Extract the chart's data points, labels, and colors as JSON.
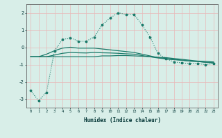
{
  "xlabel": "Humidex (Indice chaleur)",
  "x_ticks": [
    0,
    1,
    2,
    3,
    4,
    5,
    6,
    7,
    8,
    9,
    10,
    11,
    12,
    13,
    14,
    15,
    16,
    17,
    18,
    19,
    20,
    21,
    22,
    23
  ],
  "ylim": [
    -3.5,
    2.5
  ],
  "yticks": [
    -3,
    -2,
    -1,
    0,
    1,
    2
  ],
  "bg_color": "#d8eee8",
  "grid_color": "#e8b8b8",
  "line_color": "#1a7a6a",
  "series": {
    "line1_x": [
      0,
      1,
      2,
      3,
      4,
      5,
      6,
      7,
      8,
      9,
      10,
      11,
      12,
      13,
      14,
      15,
      16,
      17,
      18,
      19,
      20,
      21,
      22,
      23
    ],
    "line1_y": [
      -2.5,
      -3.1,
      -2.6,
      -0.2,
      0.45,
      0.55,
      0.35,
      0.35,
      0.6,
      1.3,
      1.7,
      2.0,
      1.9,
      1.9,
      1.3,
      0.6,
      -0.35,
      -0.65,
      -0.85,
      -0.9,
      -0.95,
      -0.95,
      -1.0,
      -0.95
    ],
    "line2_x": [
      0,
      1,
      2,
      3,
      4,
      5,
      6,
      7,
      8,
      9,
      10,
      11,
      12,
      13,
      14,
      15,
      16,
      17,
      18,
      19,
      20,
      21,
      22,
      23
    ],
    "line2_y": [
      -0.55,
      -0.55,
      -0.55,
      -0.55,
      -0.55,
      -0.55,
      -0.55,
      -0.55,
      -0.55,
      -0.5,
      -0.5,
      -0.48,
      -0.48,
      -0.5,
      -0.52,
      -0.55,
      -0.58,
      -0.6,
      -0.65,
      -0.7,
      -0.75,
      -0.8,
      -0.82,
      -0.85
    ],
    "line3_x": [
      0,
      1,
      2,
      3,
      4,
      5,
      6,
      7,
      8,
      9,
      10,
      11,
      12,
      13,
      14,
      15,
      16,
      17,
      18,
      19,
      20,
      21,
      22,
      23
    ],
    "line3_y": [
      -0.55,
      -0.55,
      -0.4,
      -0.2,
      -0.05,
      0.0,
      -0.05,
      -0.05,
      -0.05,
      -0.1,
      -0.15,
      -0.2,
      -0.25,
      -0.3,
      -0.4,
      -0.5,
      -0.6,
      -0.65,
      -0.7,
      -0.75,
      -0.8,
      -0.82,
      -0.87,
      -0.9
    ],
    "line4_x": [
      0,
      1,
      2,
      3,
      4,
      5,
      6,
      7,
      8,
      9,
      10,
      11,
      12,
      13,
      14,
      15,
      16,
      17,
      18,
      19,
      20,
      21,
      22,
      23
    ],
    "line4_y": [
      -0.55,
      -0.55,
      -0.55,
      -0.45,
      -0.35,
      -0.3,
      -0.32,
      -0.33,
      -0.3,
      -0.32,
      -0.33,
      -0.35,
      -0.38,
      -0.4,
      -0.48,
      -0.55,
      -0.62,
      -0.68,
      -0.72,
      -0.75,
      -0.8,
      -0.82,
      -0.87,
      -0.9
    ]
  }
}
